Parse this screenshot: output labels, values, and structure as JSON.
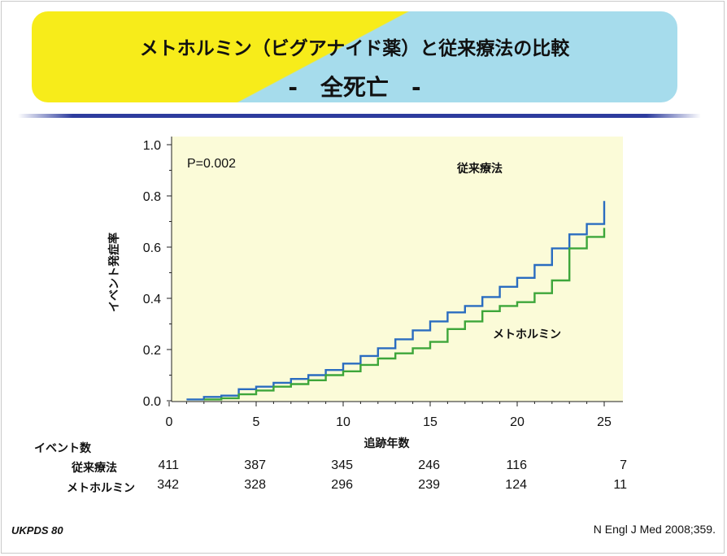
{
  "title": {
    "line1": "メトホルミン（ビグアナイド薬）と従来療法の比較",
    "line2": "-　全死亡　-"
  },
  "colors": {
    "banner_yellow": "#f7ec1a",
    "banner_blue": "#a6dcec",
    "plot_bg": "#fbfbd8",
    "conventional": "#2a6cc0",
    "metformin": "#3da63a"
  },
  "chart_data": {
    "type": "line",
    "xlabel": "追跡年数",
    "ylabel": "イベント発症率",
    "xlim": [
      0,
      25
    ],
    "ylim": [
      0,
      1.0
    ],
    "x_ticks": [
      "0",
      "5",
      "10",
      "15",
      "20",
      "25"
    ],
    "y_ticks": [
      "0.0",
      "0.2",
      "0.4",
      "0.6",
      "0.8",
      "1.0"
    ],
    "annotation": "P=0.002",
    "grid": false,
    "series": [
      {
        "name": "従来療法",
        "color": "#2a6cc0",
        "x": [
          1,
          2,
          3,
          4,
          5,
          6,
          7,
          8,
          9,
          10,
          11,
          12,
          13,
          14,
          15,
          16,
          17,
          18,
          19,
          20,
          21,
          22,
          23,
          24,
          25
        ],
        "y": [
          0.005,
          0.015,
          0.02,
          0.045,
          0.055,
          0.07,
          0.085,
          0.1,
          0.12,
          0.145,
          0.175,
          0.205,
          0.24,
          0.275,
          0.31,
          0.345,
          0.37,
          0.405,
          0.445,
          0.48,
          0.53,
          0.595,
          0.65,
          0.69,
          0.78
        ]
      },
      {
        "name": "メトホルミン",
        "color": "#3da63a",
        "x": [
          2,
          3,
          4,
          5,
          6,
          7,
          8,
          9,
          10,
          11,
          12,
          13,
          14,
          15,
          16,
          17,
          18,
          19,
          20,
          21,
          22,
          23,
          24,
          25
        ],
        "y": [
          0.005,
          0.01,
          0.025,
          0.04,
          0.055,
          0.065,
          0.08,
          0.1,
          0.115,
          0.14,
          0.165,
          0.185,
          0.205,
          0.23,
          0.28,
          0.31,
          0.35,
          0.37,
          0.385,
          0.42,
          0.47,
          0.595,
          0.64,
          0.675
        ]
      }
    ]
  },
  "table": {
    "header": "イベント数",
    "rows": [
      {
        "label": "従来療法",
        "values": [
          "411",
          "387",
          "345",
          "246",
          "116",
          "7"
        ]
      },
      {
        "label": "メトホルミン",
        "values": [
          "342",
          "328",
          "296",
          "239",
          "124",
          "11"
        ]
      }
    ]
  },
  "footer": {
    "left": "UKPDS 80",
    "right": "N Engl J Med 2008;359."
  }
}
